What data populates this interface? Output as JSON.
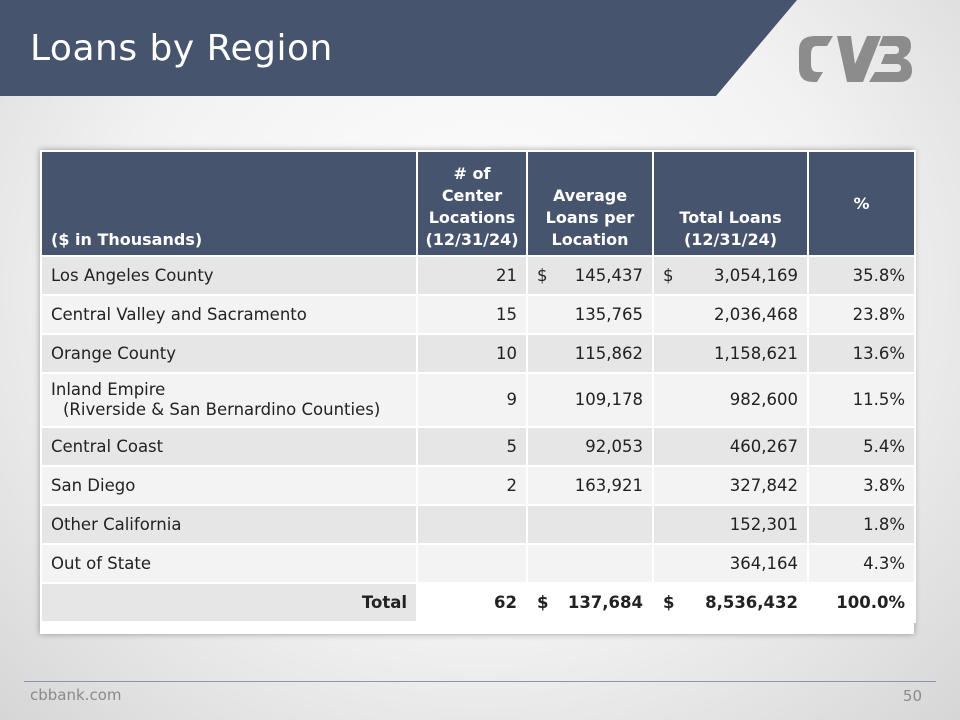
{
  "slide": {
    "title": "Loans by Region",
    "website": "cbbank.com",
    "page_number": "50",
    "title_bar_color": "#47546d",
    "logo_icon": "cvb-logo-icon"
  },
  "table": {
    "headers": [
      "($ in Thousands)",
      "# of Center Locations (12/31/24)",
      "Average Loans per Location",
      "Total Loans (12/31/24)",
      "%"
    ],
    "rows": [
      {
        "region": "Los Angeles County",
        "sub": "",
        "locations": "21",
        "avg_cur": "$",
        "avg": "145,437",
        "total_cur": "$",
        "total": "3,054,169",
        "pct": "35.8%"
      },
      {
        "region": "Central Valley and Sacramento",
        "sub": "",
        "locations": "15",
        "avg_cur": "",
        "avg": "135,765",
        "total_cur": "",
        "total": "2,036,468",
        "pct": "23.8%"
      },
      {
        "region": "Orange County",
        "sub": "",
        "locations": "10",
        "avg_cur": "",
        "avg": "115,862",
        "total_cur": "",
        "total": "1,158,621",
        "pct": "13.6%"
      },
      {
        "region": "Inland Empire",
        "sub": "(Riverside & San Bernardino Counties)",
        "locations": "9",
        "avg_cur": "",
        "avg": "109,178",
        "total_cur": "",
        "total": "982,600",
        "pct": "11.5%"
      },
      {
        "region": "Central Coast",
        "sub": "",
        "locations": "5",
        "avg_cur": "",
        "avg": "92,053",
        "total_cur": "",
        "total": "460,267",
        "pct": "5.4%"
      },
      {
        "region": "San Diego",
        "sub": "",
        "locations": "2",
        "avg_cur": "",
        "avg": "163,921",
        "total_cur": "",
        "total": "327,842",
        "pct": "3.8%"
      },
      {
        "region": "Other California",
        "sub": "",
        "locations": "",
        "avg_cur": "",
        "avg": "",
        "total_cur": "",
        "total": "152,301",
        "pct": "1.8%"
      },
      {
        "region": "Out of State",
        "sub": "",
        "locations": "",
        "avg_cur": "",
        "avg": "",
        "total_cur": "",
        "total": "364,164",
        "pct": "4.3%"
      }
    ],
    "total": {
      "label": "Total",
      "locations": "62",
      "avg_cur": "$",
      "avg": "137,684",
      "total_cur": "$",
      "total": "8,536,432",
      "pct": "100.0%"
    }
  }
}
